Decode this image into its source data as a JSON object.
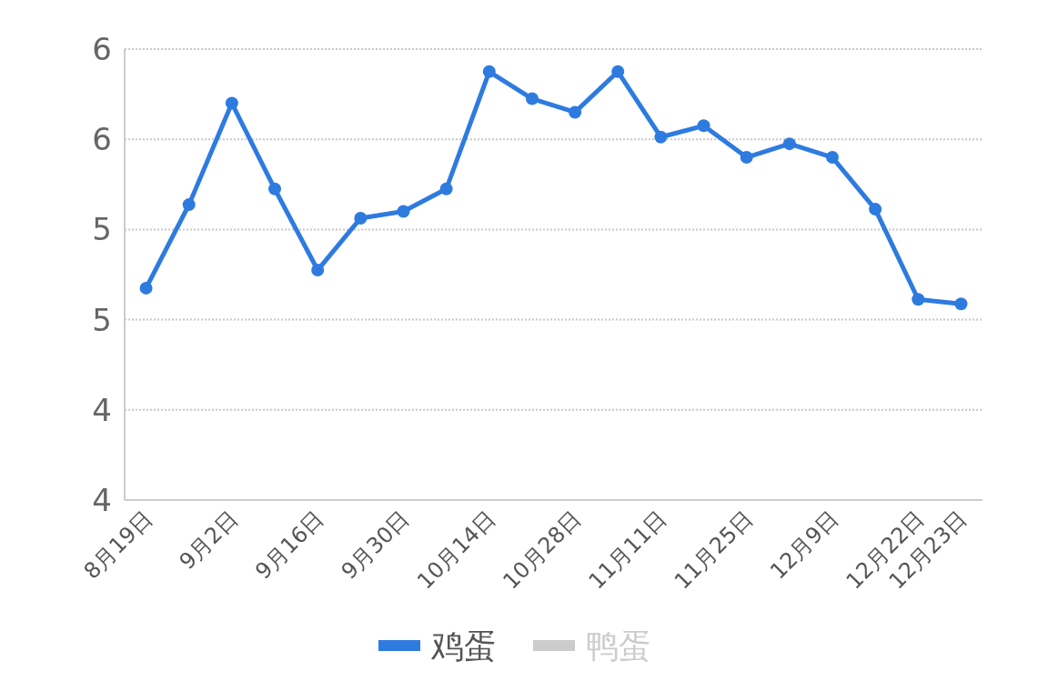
{
  "chart_data": {
    "type": "line",
    "categories": [
      "8月19日",
      null,
      "9月2日",
      null,
      "9月16日",
      null,
      "9月30日",
      null,
      "10月14日",
      null,
      "10月28日",
      null,
      "11月11日",
      null,
      "11月25日",
      null,
      "12月9日",
      null,
      "12月22日",
      "12月23日"
    ],
    "series": [
      {
        "name": "鸡蛋",
        "color": "#2e7be0",
        "values": [
          4.94,
          5.31,
          5.76,
          5.38,
          5.02,
          5.25,
          5.28,
          5.38,
          5.9,
          5.78,
          5.72,
          5.9,
          5.61,
          5.66,
          5.52,
          5.58,
          5.52,
          5.29,
          4.89,
          4.87
        ]
      },
      {
        "name": "鸭蛋",
        "color": "#cccccc",
        "values": [
          null,
          null,
          null,
          null,
          null,
          null,
          null,
          null,
          null,
          null,
          null,
          null,
          null,
          null,
          null,
          null,
          null,
          null,
          null,
          null
        ]
      }
    ],
    "ylim": [
      4.0,
      6.0
    ],
    "yticks": [
      {
        "value": 4.0,
        "label": "4"
      },
      {
        "value": 4.4,
        "label": "4"
      },
      {
        "value": 4.8,
        "label": "5"
      },
      {
        "value": 5.2,
        "label": "5"
      },
      {
        "value": 5.6,
        "label": "6"
      },
      {
        "value": 6.0,
        "label": "6"
      }
    ],
    "grid": "y",
    "legend": "bottom",
    "marker": "circle",
    "line_style": "solid"
  }
}
